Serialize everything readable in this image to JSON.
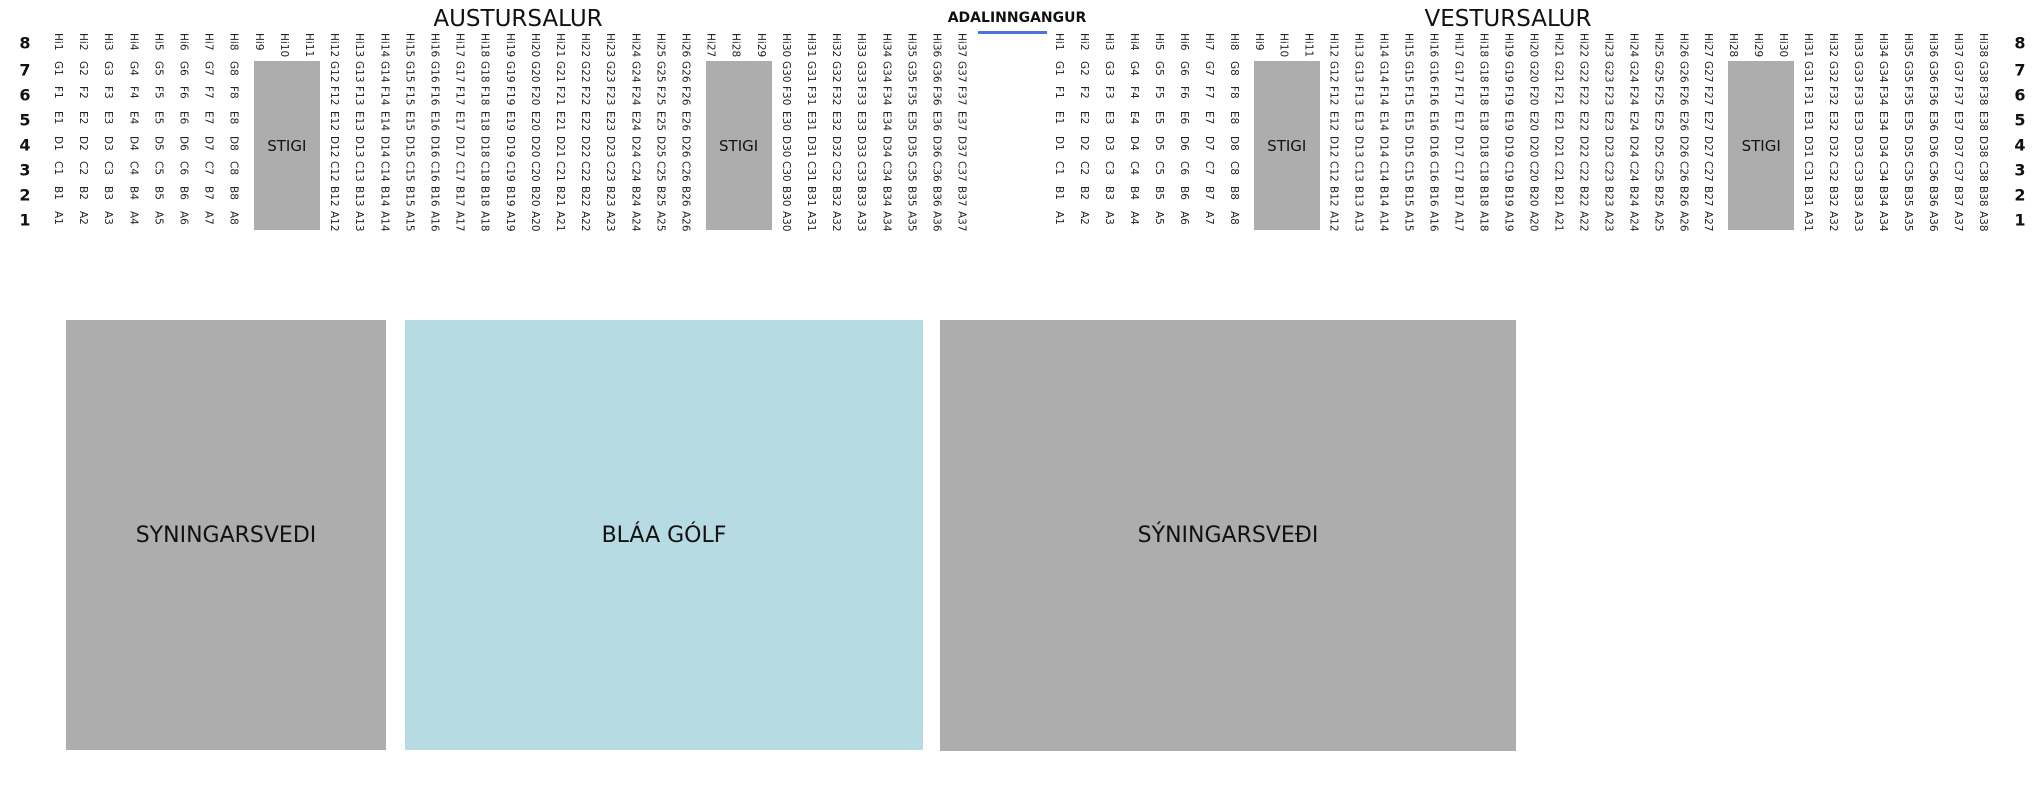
{
  "entrance": {
    "label": "ADALINNGANGUR",
    "line_color": "#4a74e0"
  },
  "row_prefixes": [
    "Hi",
    "G",
    "F",
    "E",
    "D",
    "C",
    "B",
    "A"
  ],
  "row_numbers": [
    "8",
    "7",
    "6",
    "5",
    "4",
    "3",
    "2",
    "1"
  ],
  "halls": [
    {
      "title": "AUSTURSALUR",
      "columns": 37,
      "stairs": [
        {
          "from": 9,
          "to": 11,
          "label": "STIGI"
        },
        {
          "from": 27,
          "to": 29,
          "label": "STIGI"
        }
      ]
    },
    {
      "title": "VESTURSALUR",
      "columns": 38,
      "stairs": [
        {
          "from": 9,
          "to": 11,
          "label": "STIGI"
        },
        {
          "from": 28,
          "to": 30,
          "label": "STIGI"
        }
      ]
    }
  ],
  "zones": [
    {
      "label": "SYNINGARSVEDI",
      "color": "#adadad"
    },
    {
      "label": "BLÁA GÓLF",
      "color": "#b6dbe3"
    },
    {
      "label": "SÝNINGARSVEÐI",
      "color": "#adadad"
    }
  ]
}
